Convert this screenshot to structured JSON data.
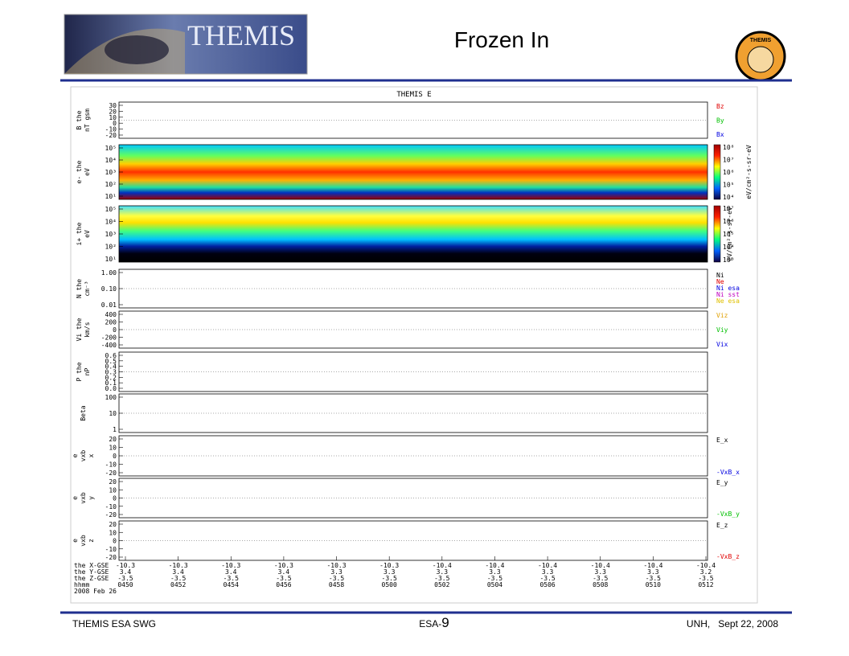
{
  "header": {
    "title": "Frozen In",
    "logo_text": "THEMIS",
    "badge_text": "THEMIS"
  },
  "figure": {
    "title": "THEMIS E",
    "panels": [
      {
        "kind": "line",
        "label": [
          "B the",
          "nT gsm"
        ],
        "ticks": [
          "30",
          "20",
          "10",
          "0",
          "-10",
          "-20"
        ],
        "legend": [
          {
            "text": "Bz",
            "color": "#e00000"
          },
          {
            "text": "By",
            "color": "#00c000"
          },
          {
            "text": "Bx",
            "color": "#0000e0"
          }
        ]
      },
      {
        "kind": "spectrogram",
        "label": [
          "e- the",
          "eV"
        ],
        "ticks": [
          "10⁵",
          "10⁴",
          "10³",
          "10²",
          "10¹"
        ],
        "colorbar": [
          "10⁸",
          "10⁷",
          "10⁶",
          "10⁵",
          "10⁴"
        ],
        "colorbar_label": "eV/cm²-s-sr-eV"
      },
      {
        "kind": "spectrogram",
        "label": [
          "i+ the",
          "eV"
        ],
        "ticks": [
          "10⁵",
          "10⁴",
          "10³",
          "10²",
          "10¹"
        ],
        "colorbar": [
          "10⁷",
          "10⁶",
          "10⁵",
          "10⁴",
          "10³"
        ],
        "colorbar_label": "eV/cm²-s-sr-eV"
      },
      {
        "kind": "line",
        "label": [
          "N the",
          "cm⁻³"
        ],
        "ticks": [
          "1.00",
          "0.10",
          "0.01"
        ],
        "legend": [
          {
            "text": "Ni",
            "color": "#000000"
          },
          {
            "text": "Ne",
            "color": "#e00000"
          },
          {
            "text": "Ni esa",
            "color": "#0000e0"
          },
          {
            "text": "Ni sst",
            "color": "#c000c0"
          },
          {
            "text": "Ne esa",
            "color": "#e0c000"
          }
        ]
      },
      {
        "kind": "line",
        "label": [
          "Vi the",
          "km/s"
        ],
        "ticks": [
          "400",
          "200",
          "0",
          "-200",
          "-400"
        ],
        "legend": [
          {
            "text": "Viz",
            "color": "#e0a000"
          },
          {
            "text": "Viy",
            "color": "#00c000"
          },
          {
            "text": "Vix",
            "color": "#0000e0"
          }
        ]
      },
      {
        "kind": "line",
        "label": [
          "P the",
          "nP"
        ],
        "ticks": [
          "0.6",
          "0.5",
          "0.4",
          "0.3",
          "0.2",
          "0.1",
          "0.0"
        ],
        "legend": []
      },
      {
        "kind": "line",
        "label": [
          "Beta"
        ],
        "ticks": [
          "100",
          "10",
          "1"
        ],
        "legend": []
      },
      {
        "kind": "line",
        "label": [
          "e",
          "vxb",
          "x"
        ],
        "ticks": [
          "20",
          "10",
          "0",
          "-10",
          "-20"
        ],
        "legend": [
          {
            "text": "E_x",
            "color": "#000000"
          },
          {
            "text": "-VxB_x",
            "color": "#0000e0"
          }
        ]
      },
      {
        "kind": "line",
        "label": [
          "e",
          "vxb",
          "y"
        ],
        "ticks": [
          "20",
          "10",
          "0",
          "-10",
          "-20"
        ],
        "legend": [
          {
            "text": "E_y",
            "color": "#000000"
          },
          {
            "text": "-VxB_y",
            "color": "#00c000"
          }
        ]
      },
      {
        "kind": "line",
        "label": [
          "e",
          "vxb",
          "z"
        ],
        "ticks": [
          "20",
          "10",
          "0",
          "-10",
          "-20"
        ],
        "legend": [
          {
            "text": "E_z",
            "color": "#000000"
          },
          {
            "text": "-VxB_z",
            "color": "#e00000"
          }
        ]
      }
    ],
    "time_axis": {
      "row_labels": [
        "the X-GSE",
        "the Y-GSE",
        "the Z-GSE",
        "hhmm"
      ],
      "columns": [
        [
          "-10.3",
          "3.4",
          "-3.5",
          "0450"
        ],
        [
          "-10.3",
          "3.4",
          "-3.5",
          "0452"
        ],
        [
          "-10.3",
          "3.4",
          "-3.5",
          "0454"
        ],
        [
          "-10.3",
          "3.4",
          "-3.5",
          "0456"
        ],
        [
          "-10.3",
          "3.3",
          "-3.5",
          "0458"
        ],
        [
          "-10.3",
          "3.3",
          "-3.5",
          "0500"
        ],
        [
          "-10.4",
          "3.3",
          "-3.5",
          "0502"
        ],
        [
          "-10.4",
          "3.3",
          "-3.5",
          "0504"
        ],
        [
          "-10.4",
          "3.3",
          "-3.5",
          "0506"
        ],
        [
          "-10.4",
          "3.3",
          "-3.5",
          "0508"
        ],
        [
          "-10.4",
          "3.3",
          "-3.5",
          "0510"
        ],
        [
          "-10.4",
          "3.2",
          "-3.5",
          "0512"
        ]
      ],
      "date": "2008 Feb 26"
    }
  },
  "footer": {
    "left": "THEMIS ESA SWG",
    "center_prefix": "ESA-",
    "center_number": "9",
    "right": "UNH,   Sept 22, 2008"
  }
}
